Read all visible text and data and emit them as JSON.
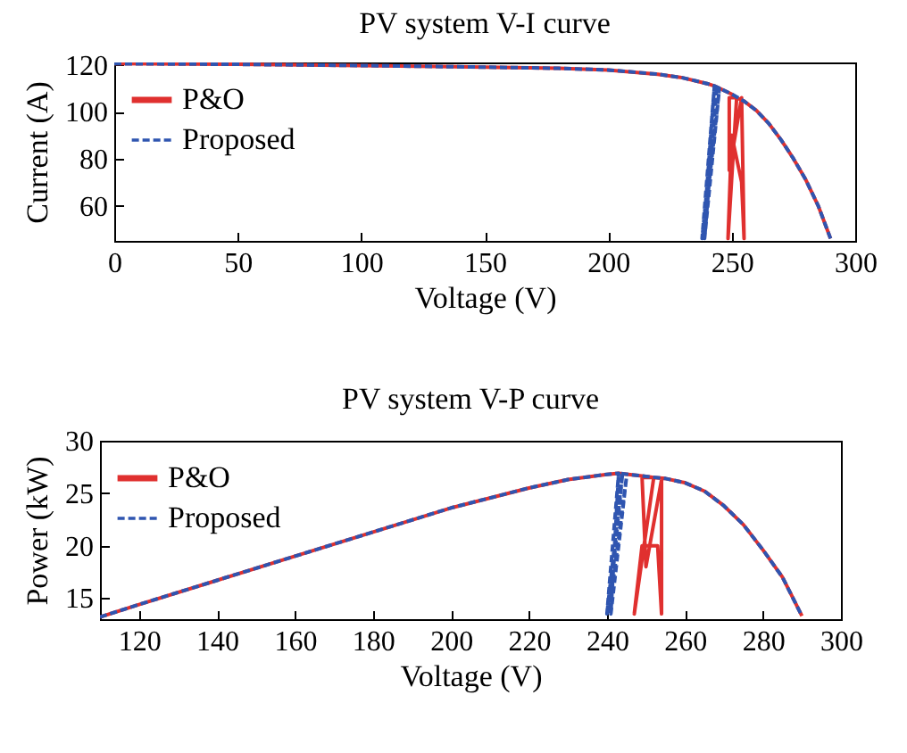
{
  "chart_data": [
    {
      "type": "line",
      "title": "PV system V-I curve",
      "xlabel": "Voltage (V)",
      "ylabel": "Current (A)",
      "xlim": [
        0,
        300
      ],
      "ylim": [
        45,
        121
      ],
      "xticks": [
        0,
        50,
        100,
        150,
        200,
        250,
        300
      ],
      "yticks": [
        60,
        80,
        100,
        120
      ],
      "grid": false,
      "legend": "top left",
      "marker": "none",
      "series": [
        {
          "name": "P&O",
          "color": "#e0302f",
          "line_style": "solid",
          "x": [
            0,
            50,
            100,
            150,
            180,
            200,
            220,
            230,
            240,
            243,
            250,
            252,
            248.5,
            250,
            254,
            255,
            254,
            249,
            249,
            252,
            255,
            260,
            265,
            270,
            275,
            280,
            285,
            290
          ],
          "values": [
            120.5,
            120.2,
            119.7,
            119,
            118.5,
            117.8,
            116,
            114.5,
            112,
            111,
            107.5,
            106,
            46,
            90,
            70,
            46,
            106,
            75,
            106,
            106,
            104.5,
            100.5,
            95,
            88,
            80,
            71,
            60,
            46
          ]
        },
        {
          "name": "Proposed",
          "color": "#2f55b0",
          "line_style": "dashed",
          "x": [
            0,
            50,
            100,
            150,
            180,
            200,
            220,
            230,
            240,
            243,
            238,
            244,
            239,
            245,
            238.5,
            243,
            250,
            255,
            260,
            265,
            270,
            275,
            280,
            285,
            290
          ],
          "values": [
            120.5,
            120.2,
            119.7,
            119,
            118.5,
            117.8,
            116,
            114.5,
            112,
            111,
            46,
            111,
            46,
            110,
            47,
            111,
            107.5,
            104.5,
            100.5,
            95,
            88,
            80,
            71,
            60,
            46
          ]
        }
      ]
    },
    {
      "type": "line",
      "title": "PV system V-P curve",
      "xlabel": "Voltage (V)",
      "ylabel": "Power (kW)",
      "xlim": [
        110,
        300
      ],
      "ylim": [
        13,
        30
      ],
      "xticks": [
        120,
        140,
        160,
        180,
        200,
        220,
        240,
        260,
        280,
        300
      ],
      "yticks": [
        15,
        20,
        25,
        30
      ],
      "grid": false,
      "legend": "top left",
      "marker": "none",
      "series": [
        {
          "name": "P&O",
          "color": "#e0302f",
          "line_style": "solid",
          "x": [
            110,
            120,
            140,
            160,
            180,
            200,
            220,
            230,
            240,
            243,
            250,
            252,
            247,
            249,
            253,
            254,
            254,
            250,
            249,
            252,
            255,
            260,
            265,
            270,
            275,
            280,
            285,
            290
          ],
          "values": [
            13.2,
            14.4,
            16.7,
            19,
            21.3,
            23.6,
            25.5,
            26.3,
            26.8,
            26.9,
            26.6,
            26.5,
            13.5,
            20,
            20,
            13.5,
            26.3,
            18,
            26.5,
            26.5,
            26.4,
            26,
            25.2,
            23.8,
            22,
            19.6,
            17,
            13.3
          ]
        },
        {
          "name": "Proposed",
          "color": "#2f55b0",
          "line_style": "dashed",
          "x": [
            110,
            120,
            140,
            160,
            180,
            200,
            220,
            230,
            240,
            243,
            240,
            244,
            240.5,
            245,
            241,
            243,
            250,
            255,
            260,
            265,
            270,
            275,
            280,
            285,
            290
          ],
          "values": [
            13.2,
            14.4,
            16.7,
            19,
            21.3,
            23.6,
            25.5,
            26.3,
            26.8,
            26.9,
            13.5,
            26.9,
            13.5,
            26.5,
            13.5,
            26.9,
            26.6,
            26.4,
            26,
            25.2,
            23.8,
            22,
            19.6,
            17,
            13.3
          ]
        }
      ]
    }
  ]
}
